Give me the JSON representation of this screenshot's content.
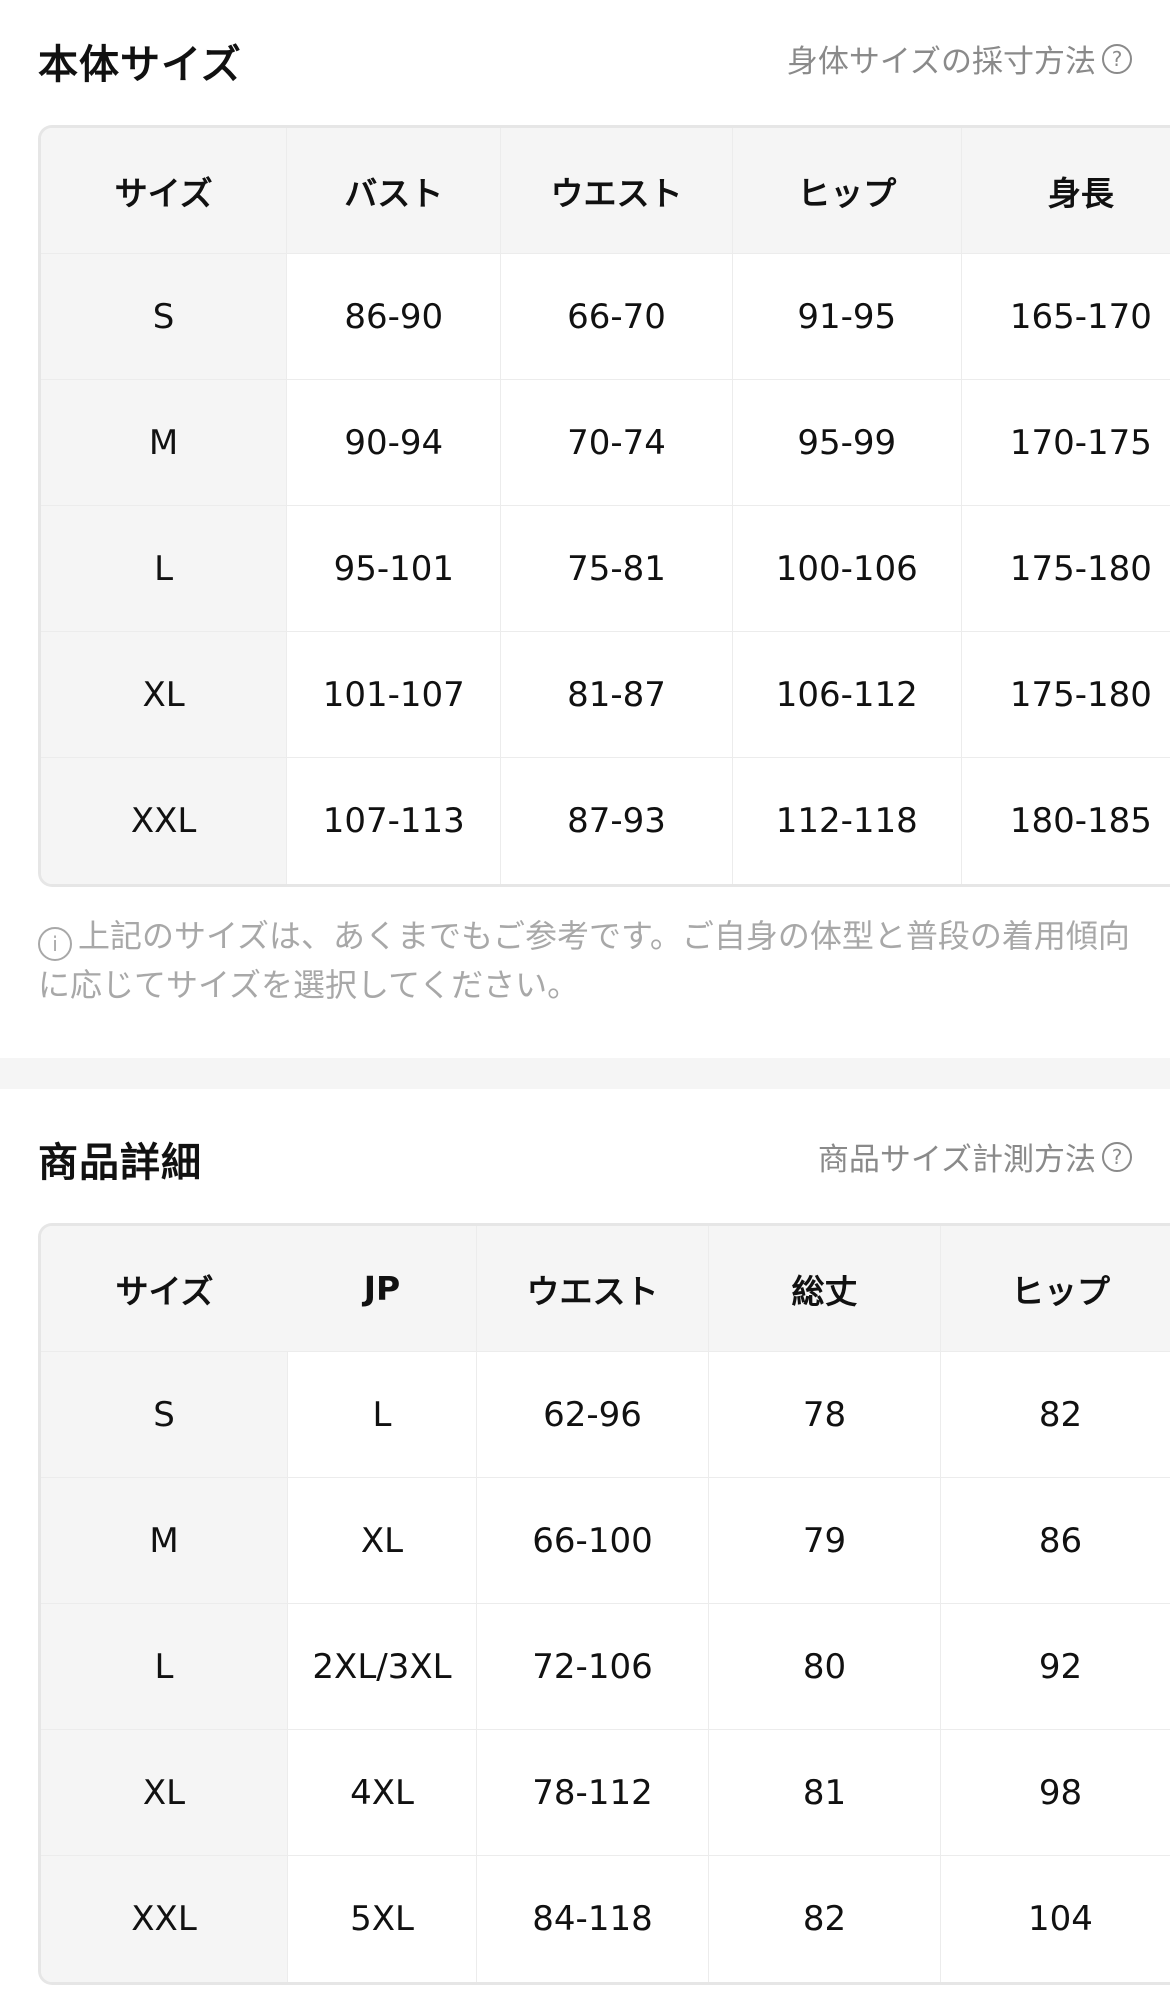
{
  "body_size": {
    "title": "本体サイズ",
    "help_link": "身体サイズの採寸方法",
    "headers": [
      "サイズ",
      "バスト",
      "ウエスト",
      "ヒップ",
      "身長"
    ],
    "rows": [
      [
        "S",
        "86-90",
        "66-70",
        "91-95",
        "165-170"
      ],
      [
        "M",
        "90-94",
        "70-74",
        "95-99",
        "170-175"
      ],
      [
        "L",
        "95-101",
        "75-81",
        "100-106",
        "175-180"
      ],
      [
        "XL",
        "101-107",
        "81-87",
        "106-112",
        "175-180"
      ],
      [
        "XXL",
        "107-113",
        "87-93",
        "112-118",
        "180-185"
      ]
    ],
    "note": "上記のサイズは、あくまでもご参考です。ご自身の体型と普段の着用傾向に応じてサイズを選択してください。"
  },
  "product_details": {
    "title": "商品詳細",
    "help_link": "商品サイズ計測方法",
    "headers": [
      "サイズ",
      "JP",
      "ウエスト",
      "総丈",
      "ヒップ"
    ],
    "rows": [
      [
        "S",
        "L",
        "62-96",
        "78",
        "82"
      ],
      [
        "M",
        "XL",
        "66-100",
        "79",
        "86"
      ],
      [
        "L",
        "2XL/3XL",
        "72-106",
        "80",
        "92"
      ],
      [
        "XL",
        "4XL",
        "78-112",
        "81",
        "98"
      ],
      [
        "XXL",
        "5XL",
        "84-118",
        "82",
        "104"
      ]
    ]
  }
}
